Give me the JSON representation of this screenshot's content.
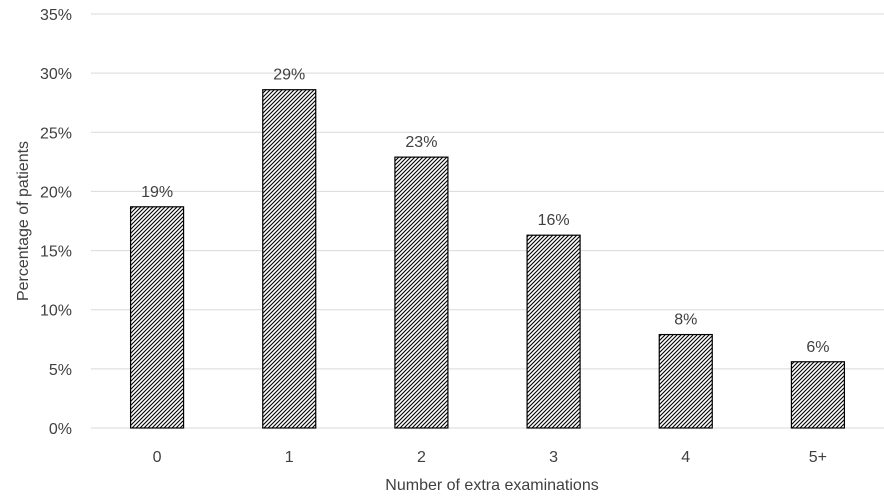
{
  "chart_data": {
    "type": "bar",
    "title": "",
    "xlabel": "Number of extra examinations",
    "ylabel": "Percentage of patients",
    "categories": [
      "0",
      "1",
      "2",
      "3",
      "4",
      "5+"
    ],
    "values": [
      18.7,
      28.6,
      22.9,
      16.3,
      7.9,
      5.6
    ],
    "data_labels": [
      "19%",
      "29%",
      "23%",
      "16%",
      "8%",
      "6%"
    ],
    "ylim": [
      0,
      35
    ],
    "yticks": [
      0,
      5,
      10,
      15,
      20,
      25,
      30,
      35
    ],
    "ytick_labels": [
      "0%",
      "5%",
      "10%",
      "15%",
      "20%",
      "25%",
      "30%",
      "35%"
    ],
    "grid": true,
    "legend": "none",
    "bar_pattern": "diagonal-hatch",
    "colors": {
      "bar_fill": "#ffffff",
      "bar_hatch": "#000000",
      "grid": "#d9d9d9",
      "text": "#404040"
    }
  }
}
